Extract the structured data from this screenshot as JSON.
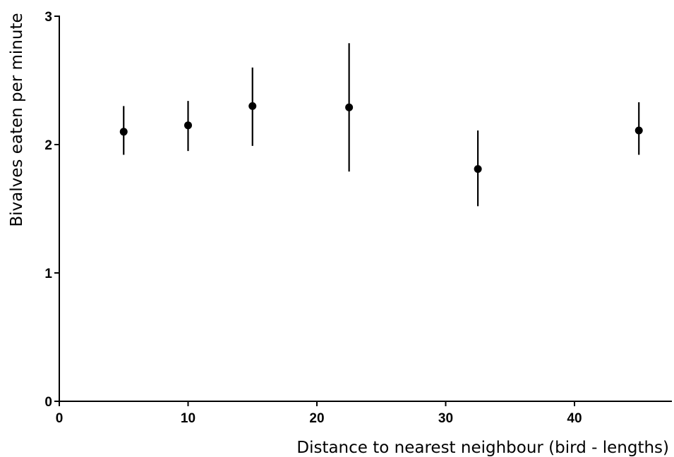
{
  "chart_data": {
    "type": "scatter",
    "title": "",
    "xlabel": "Distance to nearest neighbour (bird - lengths)",
    "ylabel": "Bivalves eaten per minute",
    "xlim": [
      0,
      48
    ],
    "ylim": [
      0,
      3
    ],
    "xticks": [
      0,
      10,
      20,
      30,
      40
    ],
    "yticks": [
      0,
      1,
      2,
      3
    ],
    "grid": false,
    "legend": "none",
    "series": [
      {
        "points": [
          {
            "x": 5,
            "y": 2.1,
            "yerr_low": 1.92,
            "yerr_high": 2.3
          },
          {
            "x": 10,
            "y": 2.15,
            "yerr_low": 1.95,
            "yerr_high": 2.34
          },
          {
            "x": 15,
            "y": 2.3,
            "yerr_low": 1.99,
            "yerr_high": 2.6
          },
          {
            "x": 22.5,
            "y": 2.29,
            "yerr_low": 1.79,
            "yerr_high": 2.79
          },
          {
            "x": 32.5,
            "y": 1.81,
            "yerr_low": 1.52,
            "yerr_high": 2.11
          },
          {
            "x": 45,
            "y": 2.11,
            "yerr_low": 1.92,
            "yerr_high": 2.33
          }
        ]
      }
    ],
    "colors": {
      "marker": "#000000",
      "axis": "#000000"
    }
  }
}
